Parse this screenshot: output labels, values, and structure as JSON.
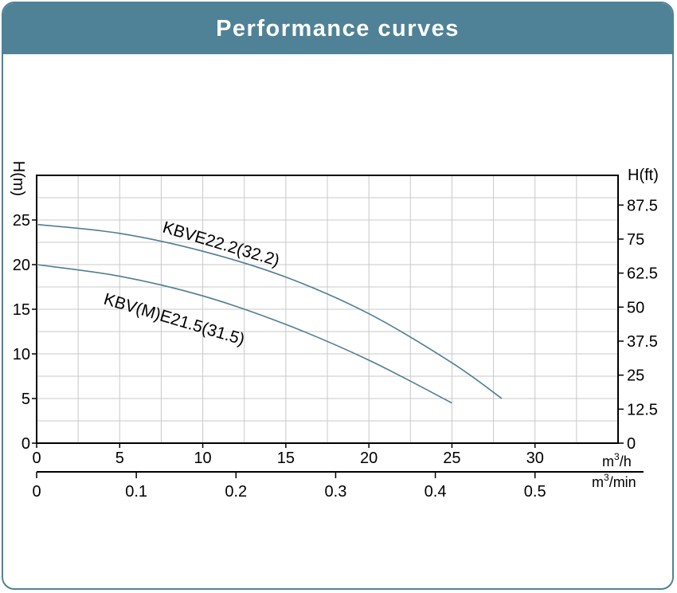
{
  "header": {
    "title": "Performance curves"
  },
  "chart_data": {
    "type": "line",
    "title": "Performance curves",
    "y_label_left": "H(m)",
    "y_label_right": "H(ft)",
    "x_label_flow_h": "m³/h",
    "x_label_flow_min": "m³/min",
    "x_range": [
      0,
      35
    ],
    "y_range": [
      0,
      30
    ],
    "x_ticks": [
      0,
      5,
      10,
      15,
      20,
      25,
      30
    ],
    "x_tick_labels": [
      "0",
      "5",
      "10",
      "15",
      "20",
      "25",
      "30"
    ],
    "y_ticks": [
      0,
      5,
      10,
      15,
      20,
      25
    ],
    "y_tick_labels": [
      "0",
      "5",
      "10",
      "15",
      "20",
      "25"
    ],
    "y_right_ticks": [
      0,
      12.5,
      25,
      37.5,
      50,
      62.5,
      75,
      87.5
    ],
    "y_right_tick_labels": [
      "0",
      "12.5",
      "25",
      "37.5",
      "50",
      "62.5",
      "75",
      "87.5"
    ],
    "x2_ticks": [
      0,
      0.1,
      0.2,
      0.3,
      0.4,
      0.5
    ],
    "x2_tick_labels": [
      "0",
      "0.1",
      "0.2",
      "0.3",
      "0.4",
      "0.5"
    ],
    "grid": true,
    "line_color": "#4f7e92",
    "series": [
      {
        "name": "KBVE22.2(32.2)",
        "x": [
          0,
          5,
          10,
          15,
          20,
          25,
          28
        ],
        "y": [
          24.5,
          23.5,
          21.5,
          18.6,
          14.5,
          9,
          5
        ]
      },
      {
        "name": "KBV(M)E21.5(31.5)",
        "x": [
          0,
          5,
          10,
          15,
          20,
          25
        ],
        "y": [
          20,
          18.7,
          16.5,
          13.3,
          9.3,
          4.5
        ]
      }
    ]
  },
  "colors": {
    "accent": "#4f8296",
    "grid": "#c8c8c8",
    "curve": "#4f7e92"
  }
}
